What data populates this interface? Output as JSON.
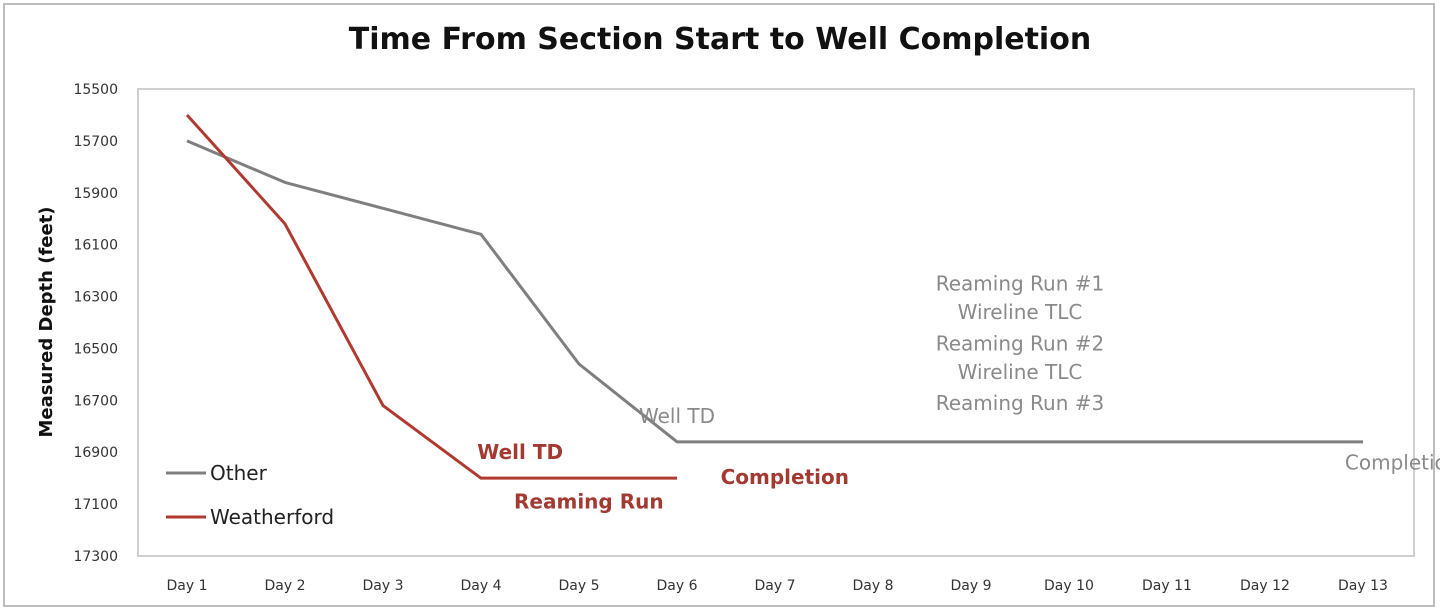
{
  "chart_data": {
    "type": "line",
    "title": "Time From Section Start to Well Completion",
    "xlabel": "",
    "ylabel": "Measured Depth (feet)",
    "categories": [
      "Day 1",
      "Day 2",
      "Day 3",
      "Day 4",
      "Day 5",
      "Day 6",
      "Day 7",
      "Day 8",
      "Day 9",
      "Day 10",
      "Day 11",
      "Day 12",
      "Day 13"
    ],
    "yticks": [
      "15500",
      "15700",
      "15900",
      "16100",
      "16300",
      "16500",
      "16700",
      "16900",
      "17100",
      "17300"
    ],
    "ylim": [
      15500,
      17300
    ],
    "y_reversed": true,
    "grid": false,
    "legend_position": "bottom-left",
    "series": [
      {
        "name": "Other",
        "color": "#7f7f7f",
        "points": [
          [
            1,
            15700
          ],
          [
            2,
            15860
          ],
          [
            3,
            15960
          ],
          [
            4,
            16060
          ],
          [
            5,
            16560
          ],
          [
            6,
            16860
          ],
          [
            13,
            16860
          ]
        ]
      },
      {
        "name": "Weatherford",
        "color": "#b03a30",
        "points": [
          [
            1,
            15600
          ],
          [
            2,
            16020
          ],
          [
            3,
            16720
          ],
          [
            4,
            17000
          ],
          [
            6,
            17000
          ]
        ]
      }
    ],
    "annotations": [
      {
        "text": "Well TD",
        "series": "Other",
        "x": 6,
        "y": 16760,
        "align": "middle"
      },
      {
        "text": "Completion",
        "series": "Other",
        "x": 13.4,
        "y": 16940,
        "align": "middle"
      },
      {
        "text": "Reaming Run #1",
        "series": "Other",
        "x": 9.5,
        "y": 16250,
        "align": "middle"
      },
      {
        "text": "Wireline TLC",
        "series": "Other",
        "x": 9.5,
        "y": 16360,
        "align": "middle"
      },
      {
        "text": "Reaming Run #2",
        "series": "Other",
        "x": 9.5,
        "y": 16480,
        "align": "middle"
      },
      {
        "text": "Wireline TLC",
        "series": "Other",
        "x": 9.5,
        "y": 16590,
        "align": "middle"
      },
      {
        "text": "Reaming Run #3",
        "series": "Other",
        "x": 9.5,
        "y": 16710,
        "align": "middle"
      },
      {
        "text": "Well TD",
        "series": "Weatherford",
        "x": 4.4,
        "y": 16900,
        "align": "middle"
      },
      {
        "text": "Completion",
        "series": "Weatherford",
        "x": 7.1,
        "y": 16995,
        "align": "middle"
      },
      {
        "text": "Reaming Run",
        "series": "Weatherford",
        "x": 5.1,
        "y": 17090,
        "align": "middle"
      }
    ]
  }
}
